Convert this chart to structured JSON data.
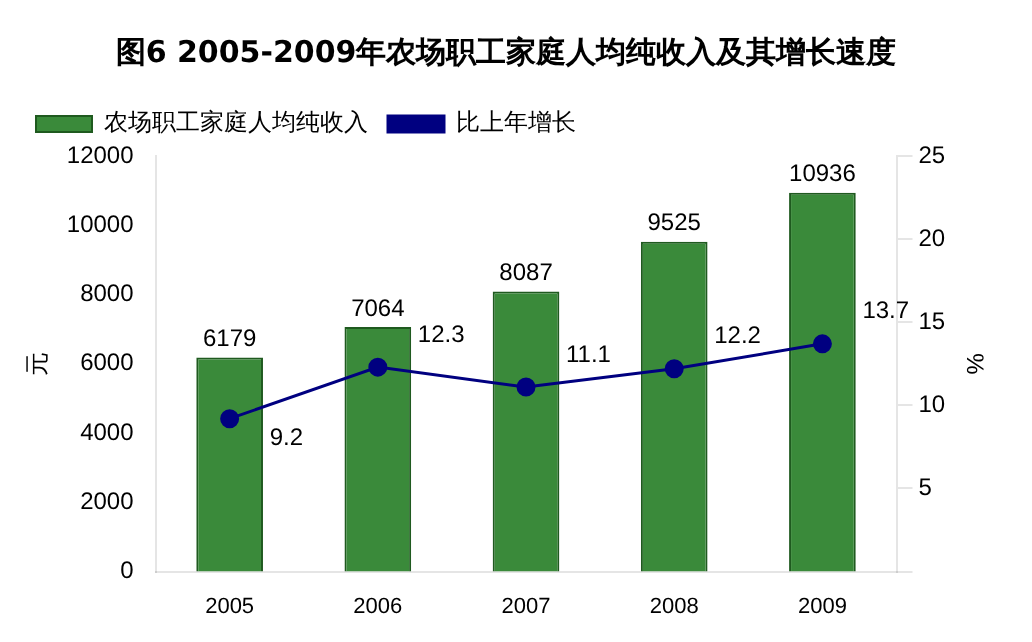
{
  "chart_data": {
    "type": "bar",
    "title": "图6 2005-2009年农场职工家庭人均纯收入及其增长速度",
    "ylabel": "元",
    "y2label": "%",
    "categories": [
      "2005",
      "2006",
      "2007",
      "2008",
      "2009"
    ],
    "series": [
      {
        "name": "农场职工家庭人均纯收入",
        "color": "#3a8a3a",
        "values": [
          6179,
          7064,
          8087,
          9525,
          10936
        ]
      },
      {
        "name": "比上年增长",
        "type": "line",
        "axis": "y2",
        "color": "#000080",
        "marker": "circle",
        "values": [
          9.2,
          12.3,
          11.1,
          12.2,
          13.7
        ]
      }
    ],
    "ylim": [
      0,
      12000
    ],
    "yticks": [
      0,
      2000,
      4000,
      6000,
      8000,
      10000,
      12000
    ],
    "y2lim": [
      0,
      25
    ],
    "y2ticks": [
      {
        "value": 0,
        "label": null
      },
      5,
      10,
      15,
      20,
      25
    ],
    "data_labels": true,
    "grid": false,
    "legend": "top left"
  }
}
